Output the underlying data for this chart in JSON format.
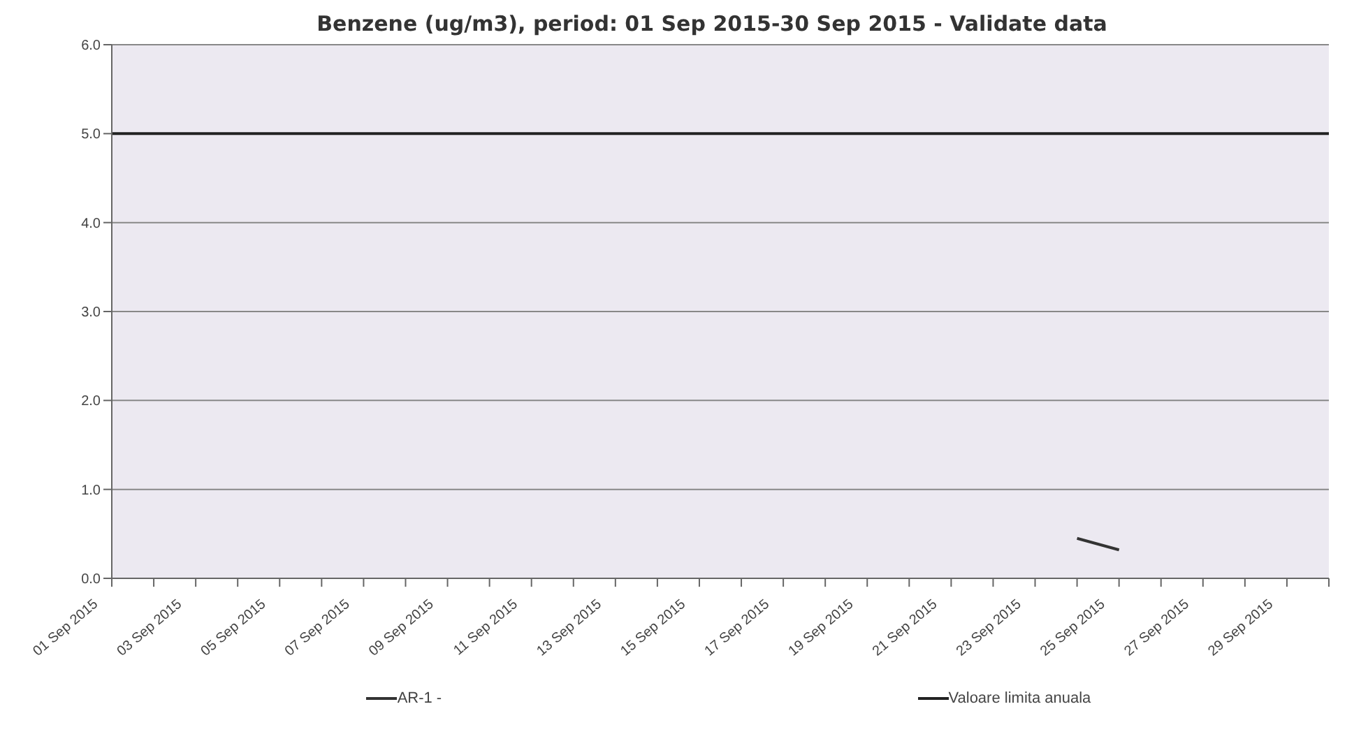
{
  "chart_data": {
    "type": "line",
    "title": "Benzene (ug/m3), period: 01 Sep 2015-30 Sep 2015 - Validate data",
    "categories": [
      "01 Sep 2015",
      null,
      "03 Sep 2015",
      null,
      "05 Sep 2015",
      null,
      "07 Sep 2015",
      null,
      "09 Sep 2015",
      null,
      "11 Sep 2015",
      null,
      "13 Sep 2015",
      null,
      "15 Sep 2015",
      null,
      "17 Sep 2015",
      null,
      "19 Sep 2015",
      null,
      "21 Sep 2015",
      null,
      "23 Sep 2015",
      null,
      "25 Sep 2015",
      null,
      "27 Sep 2015",
      null,
      "29 Sep 2015",
      null
    ],
    "series": [
      {
        "name": "AR-1 -",
        "color": "#333333",
        "values": [
          null,
          null,
          null,
          null,
          null,
          null,
          null,
          null,
          null,
          null,
          null,
          null,
          null,
          null,
          null,
          null,
          null,
          null,
          null,
          null,
          null,
          null,
          null,
          0.45,
          0.32,
          null,
          null,
          null,
          null,
          null
        ]
      },
      {
        "name": "Valoare limita anuala",
        "color": "#222222",
        "values": [
          5,
          5,
          5,
          5,
          5,
          5,
          5,
          5,
          5,
          5,
          5,
          5,
          5,
          5,
          5,
          5,
          5,
          5,
          5,
          5,
          5,
          5,
          5,
          5,
          5,
          5,
          5,
          5,
          5,
          5
        ]
      }
    ],
    "ylim": [
      0,
      6
    ],
    "yticks": [
      {
        "value": 0,
        "label": "0.0"
      },
      {
        "value": 1,
        "label": "1.0"
      },
      {
        "value": 2,
        "label": "2.0"
      },
      {
        "value": 3,
        "label": "3.0"
      },
      {
        "value": 4,
        "label": "4.0"
      },
      {
        "value": 5,
        "label": "5.0"
      },
      {
        "value": 6,
        "label": "6.0"
      }
    ],
    "grid": "y",
    "legend": "bottom",
    "marker": "none",
    "line_style": "solid"
  }
}
